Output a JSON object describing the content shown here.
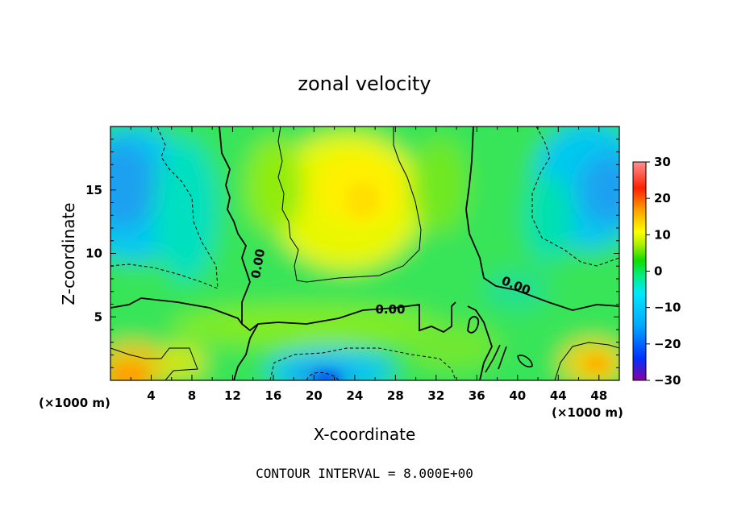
{
  "chart_data": {
    "type": "heatmap",
    "title": "zonal velocity",
    "xlabel": "X-coordinate",
    "ylabel": "Z-coordinate",
    "x_unit_label": "(×1000 m)",
    "x_unit_label_right": "(×1000 m)",
    "xlim": [
      0,
      50
    ],
    "ylim": [
      0,
      20
    ],
    "x_ticks": [
      4,
      8,
      12,
      16,
      20,
      24,
      28,
      32,
      36,
      40,
      44,
      48
    ],
    "y_ticks": [
      5,
      10,
      15
    ],
    "colorbar": {
      "range": [
        -30,
        30
      ],
      "ticks": [
        30,
        20,
        10,
        0,
        -10,
        -20,
        -30
      ],
      "stops": [
        "#8a00a0",
        "#0030ff",
        "#00a8ff",
        "#00e8ff",
        "#00ee80",
        "#10dd00",
        "#a8f000",
        "#ffff00",
        "#ffa000",
        "#ff2000",
        "#ff9090"
      ]
    },
    "contour_interval": 8.0,
    "contour_labels": [
      "0.00",
      "0.00",
      "0.00"
    ],
    "field_samples": [
      {
        "x": 1,
        "z": 15,
        "u": -12
      },
      {
        "x": 3,
        "z": 11,
        "u": -8
      },
      {
        "x": 6,
        "z": 6,
        "u": 3
      },
      {
        "x": 2,
        "z": 1,
        "u": 16
      },
      {
        "x": 8,
        "z": 1.5,
        "u": 10
      },
      {
        "x": 13,
        "z": 13,
        "u": 3
      },
      {
        "x": 24,
        "z": 14,
        "u": 12
      },
      {
        "x": 27,
        "z": 11,
        "u": 11
      },
      {
        "x": 22,
        "z": 7,
        "u": 3
      },
      {
        "x": 20,
        "z": 0.5,
        "u": -15
      },
      {
        "x": 25,
        "z": 1.5,
        "u": -9
      },
      {
        "x": 38,
        "z": 14,
        "u": 2
      },
      {
        "x": 40,
        "z": 6,
        "u": -2
      },
      {
        "x": 48,
        "z": 14,
        "u": -12
      },
      {
        "x": 46,
        "z": 10,
        "u": -8
      },
      {
        "x": 47,
        "z": 1,
        "u": 13
      },
      {
        "x": 33,
        "z": 3,
        "u": 4
      }
    ]
  },
  "footer": "CONTOUR INTERVAL = 8.000E+00"
}
